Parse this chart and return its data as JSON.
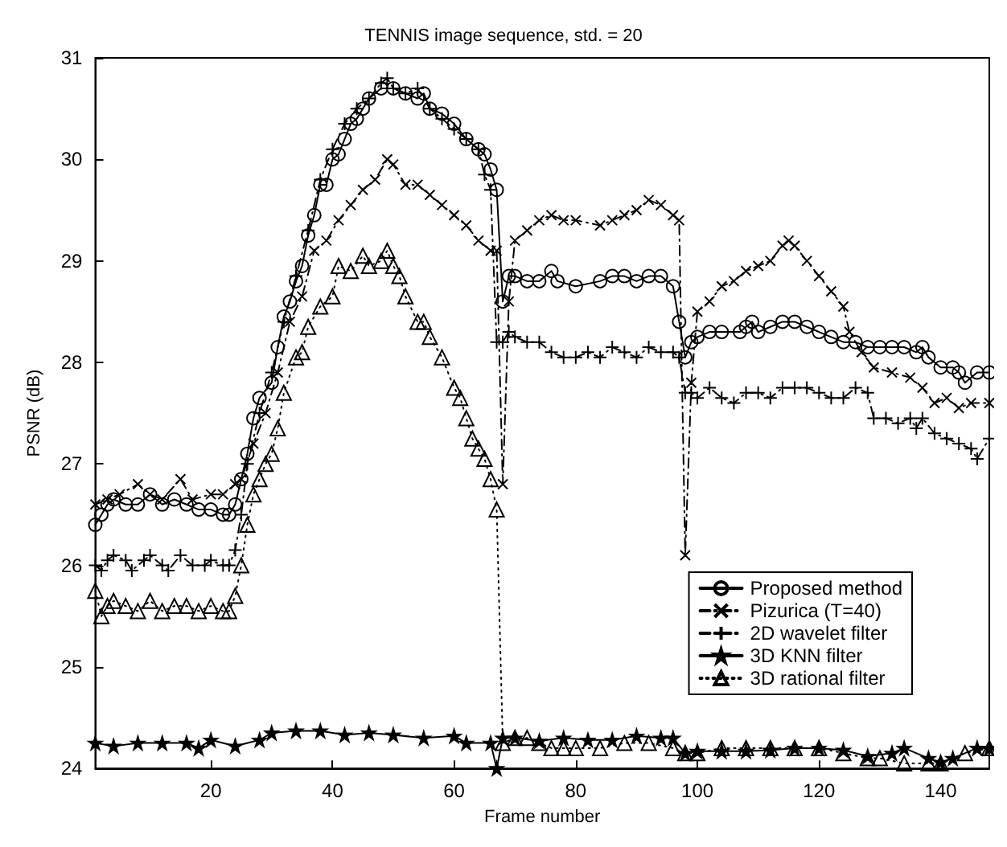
{
  "chart_data": {
    "type": "line",
    "title": "TENNIS image sequence, std. = 20",
    "xlabel": "Frame number",
    "ylabel": "PSNR (dB)",
    "xlim": [
      1,
      148
    ],
    "xticks": [
      20,
      40,
      60,
      80,
      100,
      120,
      140
    ],
    "ylim": [
      24,
      31
    ],
    "yticks": [
      24,
      25,
      26,
      27,
      28,
      29,
      30,
      31
    ],
    "grid": false,
    "legend": "bottom right",
    "series": [
      {
        "name": "Proposed method",
        "color": "#000000",
        "marker": "circle",
        "line_style": "solid",
        "x": [
          1,
          2,
          3,
          4,
          6,
          8,
          10,
          12,
          14,
          16,
          18,
          20,
          22,
          23,
          24,
          25,
          26,
          27,
          28,
          30,
          31,
          32,
          33,
          34,
          35,
          36,
          37,
          38,
          39,
          40,
          41,
          42,
          43,
          44,
          45,
          46,
          48,
          50,
          52,
          54,
          55,
          56,
          58,
          60,
          62,
          64,
          65,
          66,
          67,
          68,
          69,
          70,
          72,
          74,
          76,
          77,
          80,
          84,
          86,
          88,
          90,
          92,
          94,
          96,
          97,
          98,
          99,
          100,
          102,
          104,
          107,
          108,
          109,
          110,
          112,
          114,
          116,
          118,
          120,
          122,
          124,
          126,
          128,
          130,
          132,
          134,
          136,
          137,
          138,
          140,
          142,
          143,
          144,
          146,
          148
        ],
        "values": [
          26.4,
          26.5,
          26.6,
          26.65,
          26.6,
          26.6,
          26.7,
          26.6,
          26.65,
          26.6,
          26.55,
          26.55,
          26.5,
          26.5,
          26.6,
          26.85,
          27.1,
          27.45,
          27.65,
          27.8,
          28.15,
          28.45,
          28.6,
          28.8,
          28.95,
          29.25,
          29.45,
          29.75,
          29.75,
          30.0,
          30.05,
          30.2,
          30.35,
          30.4,
          30.5,
          30.6,
          30.7,
          30.7,
          30.65,
          30.6,
          30.65,
          30.5,
          30.45,
          30.35,
          30.2,
          30.1,
          30.05,
          29.9,
          29.7,
          28.6,
          28.85,
          28.85,
          28.8,
          28.8,
          28.9,
          28.8,
          28.75,
          28.8,
          28.85,
          28.85,
          28.8,
          28.85,
          28.85,
          28.75,
          28.4,
          28.05,
          28.2,
          28.25,
          28.3,
          28.3,
          28.3,
          28.35,
          28.4,
          28.3,
          28.35,
          28.4,
          28.4,
          28.35,
          28.3,
          28.25,
          28.2,
          28.2,
          28.15,
          28.15,
          28.15,
          28.15,
          28.1,
          28.15,
          28.05,
          27.95,
          27.95,
          27.9,
          27.8,
          27.9,
          27.9
        ]
      },
      {
        "name": "Pizurica (T=40)",
        "color": "#000000",
        "marker": "cross",
        "line_style": "dashed",
        "x": [
          1,
          3,
          5,
          8,
          10,
          12,
          15,
          17,
          20,
          22,
          24,
          25,
          27,
          29,
          31,
          33,
          35,
          37,
          39,
          41,
          43,
          45,
          47,
          49,
          50,
          52,
          54,
          56,
          58,
          60,
          62,
          64,
          66,
          67,
          68,
          69,
          70,
          72,
          74,
          76,
          78,
          80,
          84,
          86,
          88,
          90,
          92,
          94,
          96,
          97,
          98,
          99,
          100,
          102,
          104,
          106,
          108,
          110,
          112,
          114,
          115,
          116,
          118,
          120,
          122,
          124,
          125,
          127,
          129,
          132,
          135,
          137,
          139,
          141,
          143,
          145,
          148
        ],
        "values": [
          26.6,
          26.65,
          26.7,
          26.8,
          26.7,
          26.65,
          26.85,
          26.65,
          26.7,
          26.7,
          26.8,
          26.85,
          27.2,
          27.5,
          27.9,
          28.4,
          28.65,
          29.1,
          29.2,
          29.4,
          29.55,
          29.7,
          29.8,
          30.0,
          29.95,
          29.75,
          29.75,
          29.65,
          29.55,
          29.45,
          29.35,
          29.2,
          29.1,
          29.1,
          26.8,
          28.6,
          29.2,
          29.3,
          29.4,
          29.45,
          29.4,
          29.4,
          29.35,
          29.4,
          29.45,
          29.5,
          29.6,
          29.55,
          29.45,
          29.4,
          26.1,
          27.8,
          28.5,
          28.6,
          28.75,
          28.8,
          28.9,
          28.95,
          29.0,
          29.15,
          29.2,
          29.15,
          29.0,
          28.85,
          28.7,
          28.55,
          28.3,
          28.1,
          27.95,
          27.9,
          27.85,
          27.75,
          27.6,
          27.65,
          27.55,
          27.6,
          27.6
        ]
      },
      {
        "name": "2D wavelet filter",
        "color": "#000000",
        "marker": "plus",
        "line_style": "dashed",
        "x": [
          1,
          2,
          3,
          4,
          6,
          7,
          9,
          10,
          12,
          13,
          15,
          17,
          19,
          20,
          22,
          23,
          24,
          25,
          26,
          28,
          30,
          32,
          34,
          36,
          38,
          40,
          42,
          44,
          46,
          48,
          49,
          50,
          52,
          54,
          56,
          58,
          60,
          62,
          64,
          65,
          66,
          67,
          68,
          69,
          70,
          72,
          74,
          76,
          78,
          80,
          82,
          84,
          86,
          88,
          90,
          92,
          94,
          96,
          97,
          98,
          99,
          100,
          102,
          104,
          106,
          108,
          110,
          112,
          114,
          116,
          118,
          120,
          122,
          124,
          126,
          128,
          129,
          131,
          133,
          135,
          136,
          137,
          139,
          141,
          143,
          145,
          146,
          148
        ],
        "values": [
          26.0,
          25.95,
          26.05,
          26.1,
          26.05,
          25.95,
          26.05,
          26.1,
          26.0,
          25.95,
          26.1,
          26.0,
          26.0,
          26.05,
          26.0,
          26.0,
          26.15,
          26.5,
          27.0,
          27.5,
          27.9,
          28.4,
          28.85,
          29.3,
          29.8,
          30.1,
          30.35,
          30.5,
          30.6,
          30.75,
          30.8,
          30.7,
          30.65,
          30.7,
          30.5,
          30.4,
          30.3,
          30.2,
          30.1,
          29.85,
          29.7,
          28.2,
          28.2,
          28.3,
          28.25,
          28.2,
          28.2,
          28.1,
          28.05,
          28.05,
          28.1,
          28.05,
          28.15,
          28.1,
          28.05,
          28.15,
          28.1,
          28.1,
          28.05,
          27.7,
          27.7,
          27.65,
          27.75,
          27.65,
          27.6,
          27.7,
          27.7,
          27.65,
          27.75,
          27.75,
          27.75,
          27.7,
          27.65,
          27.65,
          27.75,
          27.7,
          27.45,
          27.45,
          27.4,
          27.45,
          27.35,
          27.45,
          27.3,
          27.25,
          27.2,
          27.15,
          27.05,
          27.25
        ]
      },
      {
        "name": "3D KNN filter",
        "color": "#000000",
        "marker": "star",
        "line_style": "solid",
        "x": [
          1,
          4,
          8,
          12,
          16,
          18,
          20,
          24,
          28,
          30,
          34,
          38,
          42,
          46,
          50,
          55,
          60,
          62,
          66,
          67,
          68,
          70,
          74,
          78,
          82,
          86,
          90,
          94,
          96,
          98,
          100,
          104,
          108,
          112,
          116,
          120,
          124,
          128,
          132,
          134,
          138,
          140,
          142,
          146,
          148
        ],
        "values": [
          24.25,
          24.22,
          24.25,
          24.25,
          24.25,
          24.2,
          24.28,
          24.22,
          24.28,
          24.35,
          24.37,
          24.37,
          24.33,
          24.35,
          24.33,
          24.3,
          24.32,
          24.25,
          24.25,
          24.0,
          24.3,
          24.3,
          24.27,
          24.3,
          24.28,
          24.28,
          24.32,
          24.3,
          24.3,
          24.15,
          24.17,
          24.17,
          24.17,
          24.18,
          24.2,
          24.2,
          24.18,
          24.12,
          24.15,
          24.2,
          24.1,
          24.06,
          24.1,
          24.2,
          24.2
        ]
      },
      {
        "name": "3D rational filter",
        "color": "#000000",
        "marker": "triangle",
        "line_style": "dotted",
        "x": [
          1,
          2,
          3,
          4,
          6,
          8,
          10,
          12,
          14,
          16,
          18,
          20,
          22,
          23,
          24,
          25,
          26,
          27,
          28,
          29,
          30,
          31,
          32,
          34,
          35,
          36,
          38,
          40,
          41,
          43,
          45,
          46,
          48,
          49,
          50,
          51,
          52,
          54,
          55,
          56,
          58,
          60,
          61,
          62,
          63,
          64,
          65,
          66,
          67,
          68,
          70,
          72,
          74,
          76,
          78,
          80,
          84,
          88,
          92,
          96,
          98,
          100,
          104,
          108,
          112,
          116,
          120,
          124,
          128,
          130,
          134,
          138,
          140,
          144,
          148
        ],
        "values": [
          25.75,
          25.5,
          25.6,
          25.65,
          25.6,
          25.55,
          25.65,
          25.55,
          25.6,
          25.6,
          25.55,
          25.6,
          25.55,
          25.55,
          25.7,
          26.0,
          26.4,
          26.7,
          26.85,
          27.0,
          27.1,
          27.35,
          27.7,
          28.05,
          28.1,
          28.35,
          28.55,
          28.65,
          28.95,
          28.9,
          29.05,
          28.95,
          29.0,
          29.1,
          28.95,
          28.85,
          28.65,
          28.4,
          28.4,
          28.25,
          28.05,
          27.75,
          27.65,
          27.45,
          27.25,
          27.15,
          27.05,
          26.85,
          26.55,
          24.25,
          24.3,
          24.3,
          24.25,
          24.2,
          24.2,
          24.2,
          24.2,
          24.25,
          24.25,
          24.2,
          24.15,
          24.15,
          24.2,
          24.2,
          24.2,
          24.2,
          24.2,
          24.15,
          24.1,
          24.1,
          24.05,
          24.05,
          24.05,
          24.15,
          24.2
        ]
      }
    ]
  }
}
